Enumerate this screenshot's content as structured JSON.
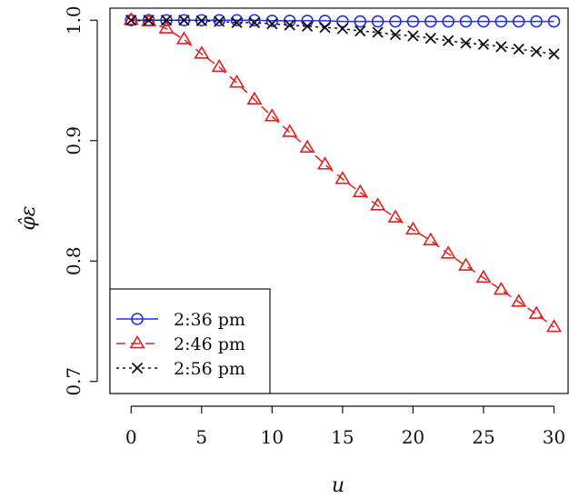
{
  "chart_data": {
    "type": "line",
    "title": "",
    "xlabel": "u",
    "ylabel": "φ̂ε",
    "xlim": [
      -1.5,
      31
    ],
    "ylim": [
      0.69,
      1.01
    ],
    "xticks": [
      0,
      5,
      10,
      15,
      20,
      25,
      30
    ],
    "yticks": [
      0.7,
      0.8,
      0.9,
      1.0
    ],
    "xtick_labels": [
      "0",
      "5",
      "10",
      "15",
      "20",
      "25",
      "30"
    ],
    "ytick_labels": [
      "0.7",
      "0.8",
      "0.9",
      "1.0"
    ],
    "grid": false,
    "legend_position": "bottom-left",
    "x": [
      0,
      1.25,
      2.5,
      3.75,
      5,
      6.25,
      7.5,
      8.75,
      10,
      11.25,
      12.5,
      13.75,
      15,
      16.25,
      17.5,
      18.75,
      20,
      21.25,
      22.5,
      23.75,
      25,
      26.25,
      27.5,
      28.75,
      30
    ],
    "series": [
      {
        "name": "2:36 pm",
        "color": "#2233dd",
        "marker": "circle",
        "line_style": "solid",
        "values": [
          1.0,
          1.0,
          1.0,
          1.0,
          1.0,
          1.0,
          1.0,
          1.0,
          0.9995,
          0.9995,
          0.9995,
          0.9995,
          0.999,
          0.999,
          0.999,
          0.999,
          0.999,
          0.999,
          0.999,
          0.999,
          0.999,
          0.999,
          0.999,
          0.999,
          0.999
        ]
      },
      {
        "name": "2:46 pm",
        "color": "#e02020",
        "marker": "triangle",
        "line_style": "dashed",
        "values": [
          1.0,
          0.999,
          0.993,
          0.984,
          0.972,
          0.961,
          0.948,
          0.934,
          0.92,
          0.907,
          0.894,
          0.88,
          0.868,
          0.857,
          0.846,
          0.836,
          0.826,
          0.817,
          0.806,
          0.796,
          0.786,
          0.776,
          0.766,
          0.756,
          0.745
        ]
      },
      {
        "name": "2:56 pm",
        "color": "#111111",
        "marker": "x",
        "line_style": "dotted",
        "values": [
          1.0,
          1.0,
          1.0,
          1.0,
          0.9995,
          0.999,
          0.998,
          0.998,
          0.997,
          0.996,
          0.995,
          0.994,
          0.993,
          0.991,
          0.99,
          0.988,
          0.987,
          0.985,
          0.983,
          0.981,
          0.98,
          0.978,
          0.976,
          0.974,
          0.972
        ]
      }
    ]
  }
}
